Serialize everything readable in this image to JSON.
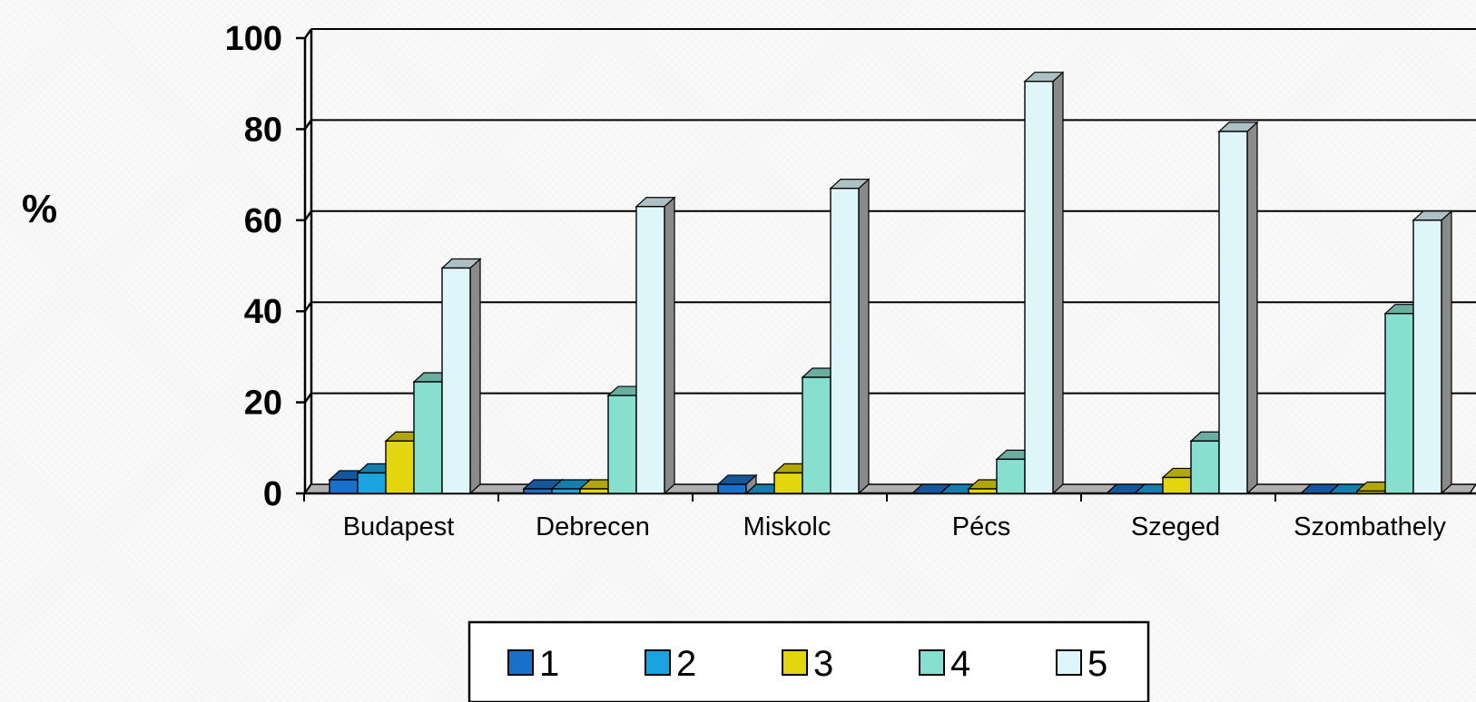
{
  "chart_data": {
    "type": "bar",
    "title": "",
    "xlabel": "",
    "ylabel": "%",
    "ylim": [
      0,
      100
    ],
    "yticks": [
      0,
      20,
      40,
      60,
      80,
      100
    ],
    "grid": true,
    "legend_position": "bottom-center",
    "categories": [
      "Budapest",
      "Debrecen",
      "Miskolc",
      "Pécs",
      "Szeged",
      "Szombathely"
    ],
    "series": [
      {
        "name": "1",
        "color": "#1a6fc9",
        "values": [
          3,
          1,
          2,
          0,
          0,
          0
        ]
      },
      {
        "name": "2",
        "color": "#1aa3df",
        "values": [
          4.5,
          1,
          0,
          0,
          0,
          0
        ]
      },
      {
        "name": "3",
        "color": "#e3d60e",
        "values": [
          11.5,
          1,
          4.5,
          1,
          3.5,
          0.5
        ]
      },
      {
        "name": "4",
        "color": "#86dfcf",
        "values": [
          24.5,
          21.5,
          25.5,
          7.5,
          11.5,
          39.5
        ]
      },
      {
        "name": "5",
        "color": "#def6fa",
        "values": [
          49.5,
          63,
          67,
          90.5,
          79.5,
          60
        ]
      }
    ]
  }
}
